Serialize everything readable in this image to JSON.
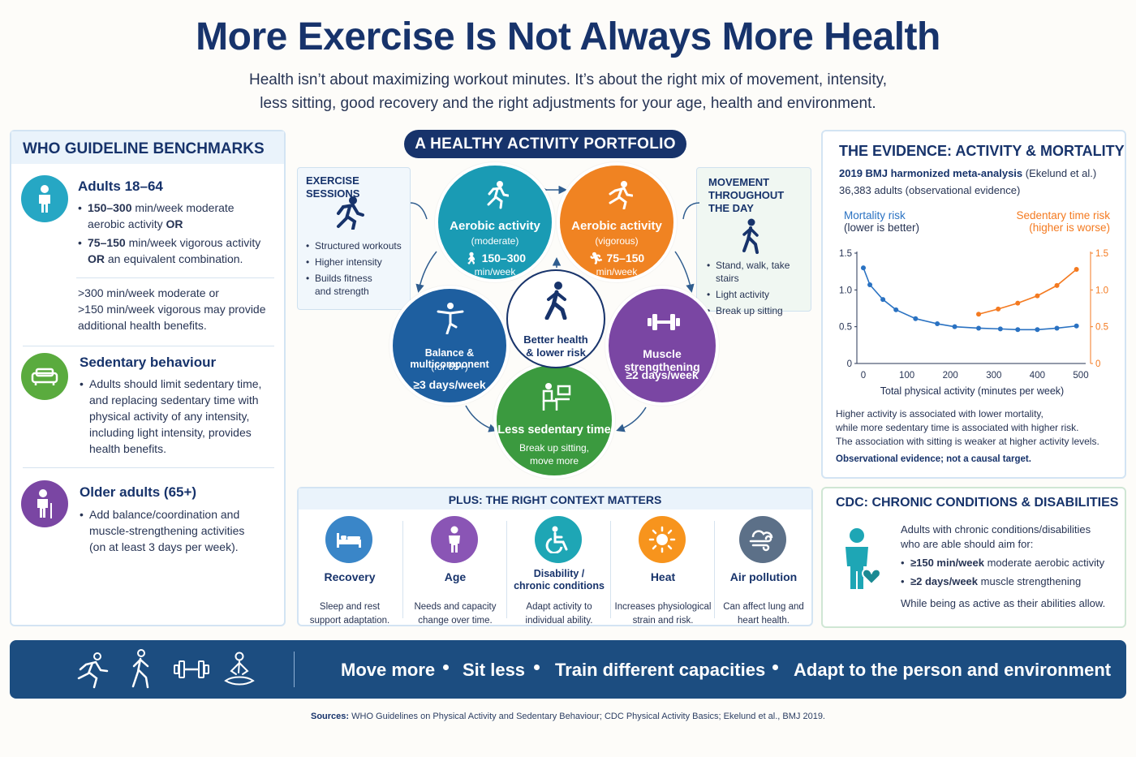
{
  "header": {
    "title": "More Exercise Is Not Always More Health",
    "subtitle_line1": "Health isn’t about maximizing workout minutes. It’s about the right mix of movement, intensity,",
    "subtitle_line2": "less sitting, good recovery and the right adjustments for your age, health and environment."
  },
  "who": {
    "heading": "WHO GUIDELINE BENCHMARKS",
    "adults": {
      "title": "Adults 18–64",
      "bullet1_a": "150–300",
      "bullet1_b": " min/week moderate",
      "bullet1_c": "aerobic activity ",
      "bullet1_d": "OR",
      "bullet2_a": "75–150",
      "bullet2_b": " min/week vigorous activity",
      "bullet2_c": "OR",
      "bullet2_d": " an equivalent combination.",
      "extra1": ">300 min/week moderate or",
      "extra2": ">150 min/week vigorous may provide",
      "extra3": "additional health benefits."
    },
    "sedentary": {
      "title": "Sedentary behaviour",
      "l1": "Adults should limit sedentary time,",
      "l2": "and replacing sedentary time with",
      "l3": "physical activity of any intensity,",
      "l4": "including light intensity, provides",
      "l5": "health benefits."
    },
    "older": {
      "title": "Older adults (65+)",
      "l1": "Add balance/coordination and",
      "l2": "muscle-strengthening activities",
      "l3": "(on at least 3 days per week)."
    }
  },
  "portfolio": {
    "pill": "A HEALTHY ACTIVITY PORTFOLIO",
    "exercise_box": {
      "title": "EXERCISE SESSIONS",
      "items": [
        "Structured workouts",
        "Higher intensity",
        "Builds fitness",
        "and strength"
      ]
    },
    "movement_box": {
      "title1": "MOVEMENT",
      "title2": "THROUGHOUT",
      "title3": "THE DAY",
      "items": [
        "Stand, walk, take stairs",
        "Light activity",
        "Break up sitting"
      ]
    },
    "aerobic_mod": {
      "t1": "Aerobic activity",
      "t2": "(moderate)",
      "t3": "150–300",
      "t4": "min/week"
    },
    "aerobic_vig": {
      "t1": "Aerobic activity",
      "t2": "(vigorous)",
      "t3": "75–150",
      "t4": "min/week"
    },
    "balance": {
      "t1": "Balance & multicomponent",
      "t2": "(for 65+)",
      "t3": "≥3 days/week"
    },
    "muscle": {
      "t1": "Muscle strengthening",
      "t3": "≥2 days/week"
    },
    "sedentary": {
      "t1": "Less sedentary time",
      "t2": "Break up sitting,",
      "t3": "move more"
    },
    "center": {
      "t1": "Better health",
      "t2": "& lower risk"
    },
    "colors": {
      "teal": "#1a9bb4",
      "orange": "#f08322",
      "blue": "#1e5fa0",
      "purple": "#7a46a3",
      "green": "#3b9a3f",
      "navy": "#17336b"
    }
  },
  "context": {
    "heading": "PLUS:  THE RIGHT CONTEXT MATTERS",
    "items": [
      {
        "title": "Recovery",
        "d1": "Sleep and rest",
        "d2": "support adaptation.",
        "icon": "bed-icon",
        "color": "#3a86c8"
      },
      {
        "title": "Age",
        "d1": "Needs and capacity",
        "d2": "change over time.",
        "icon": "person-icon",
        "color": "#8a55b5"
      },
      {
        "title": "Disability /",
        "title2": "chronic conditions",
        "d1": "Adapt activity to",
        "d2": "individual ability.",
        "icon": "wheelchair-icon",
        "color": "#1ea6b5"
      },
      {
        "title": "Heat",
        "d1": "Increases physiological",
        "d2": "strain and risk.",
        "icon": "sun-icon",
        "color": "#f7941d"
      },
      {
        "title": "Air pollution",
        "d1": "Can affect lung and",
        "d2": "heart health.",
        "icon": "wind-icon",
        "color": "#5c7088"
      }
    ]
  },
  "evidence": {
    "title": "THE EVIDENCE: ACTIVITY & MORTALITY",
    "study_a": "2019 BMJ harmonized meta-analysis",
    "study_b": " (Ekelund et al.)",
    "sample": "36,383 adults (observational evidence)",
    "legend_left1": "Mortality risk",
    "legend_left2": "(lower is better)",
    "legend_right1": "Sedentary time risk",
    "legend_right2": "(higher is worse)",
    "note1": "Higher activity is associated with lower mortality,",
    "note2": "while more sedentary time is associated with higher risk.",
    "note3": "The association with sitting is weaker at higher activity levels.",
    "note4": "Observational evidence; not a causal target."
  },
  "chart_data": {
    "type": "line",
    "xlabel": "Total physical activity (minutes per week)",
    "xlim": [
      0,
      500
    ],
    "ylim": [
      0,
      1.5
    ],
    "x_ticks": [
      0,
      100,
      200,
      300,
      400,
      500
    ],
    "y_ticks_left": [
      0,
      0.5,
      1.0,
      1.5
    ],
    "y_ticks_right": [
      0,
      0.5,
      1.0,
      1.5
    ],
    "series": [
      {
        "name": "Mortality risk",
        "color": "#2a72c2",
        "x": [
          0,
          15,
          45,
          75,
          120,
          170,
          210,
          265,
          315,
          355,
          400,
          445,
          490
        ],
        "y": [
          1.3,
          1.07,
          0.87,
          0.73,
          0.61,
          0.54,
          0.5,
          0.48,
          0.47,
          0.46,
          0.46,
          0.48,
          0.51
        ]
      },
      {
        "name": "Sedentary time risk",
        "color": "#f47a20",
        "x": [
          265,
          310,
          355,
          400,
          445,
          490
        ],
        "y": [
          0.67,
          0.74,
          0.82,
          0.92,
          1.06,
          1.28
        ]
      }
    ]
  },
  "cdc": {
    "title": "CDC: CHRONIC CONDITIONS & DISABILITIES",
    "intro1": "Adults with chronic conditions/disabilities",
    "intro2": "who are able should aim for:",
    "b1_a": "≥150 min/week",
    "b1_b": " moderate aerobic activity",
    "b2_a": "≥2 days/week",
    "b2_b": " muscle strengthening",
    "outro": "While being as active as their abilities allow."
  },
  "bottom": {
    "item1": "Move more",
    "item2": "Sit less",
    "item3": "Train different capacities",
    "item4": "Adapt to the person and environment"
  },
  "sources": {
    "label": "Sources:",
    "text": " WHO Guidelines on Physical Activity and Sedentary Behaviour; CDC Physical Activity Basics;  Ekelund et al., BMJ 2019."
  }
}
